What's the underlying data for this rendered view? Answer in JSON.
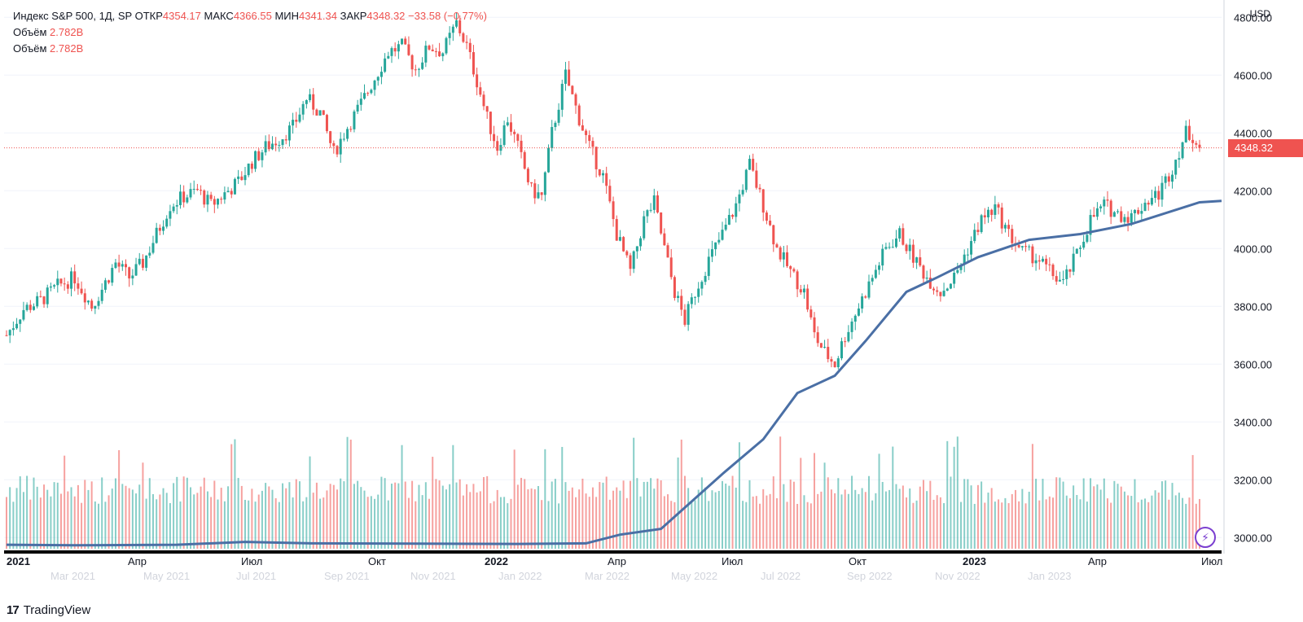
{
  "legend": {
    "symbol": "Индекс S&P 500, 1Д, SP",
    "open_label": "ОТКР",
    "open": "4354.17",
    "high_label": "МАКС",
    "high": "4366.55",
    "low_label": "МИН",
    "low": "4341.34",
    "close_label": "ЗАКР",
    "close": "4348.32",
    "change": "−33.58 (−0.77%)",
    "volume_label": "Объём",
    "volume": "2.782B",
    "volume2_label": "Объём",
    "volume2": "2.782B"
  },
  "currency": "USD",
  "last_price": "4348.32",
  "brand": {
    "logo": "17",
    "name": "TradingView"
  },
  "colors": {
    "up": "#26a69a",
    "down": "#ef5350",
    "overlay": "#4a6fa5",
    "text": "#131722",
    "purple": "#7b3fd0"
  },
  "icons": {
    "bolt": "lightning-icon"
  },
  "chart_data": {
    "type": "candlestick",
    "y_ticks": [
      "4800.00",
      "4600.00",
      "4400.00",
      "4200.00",
      "4000.00",
      "3800.00",
      "3600.00",
      "3400.00",
      "3200.00",
      "3000.00"
    ],
    "ylim": [
      2950,
      4860
    ],
    "x_ticks_primary": [
      "2021",
      "Апр",
      "Июл",
      "Окт",
      "2022",
      "Апр",
      "Июл",
      "Окт",
      "2023",
      "Апр",
      "Июл"
    ],
    "x_ticks_faded": [
      "Mar 2021",
      "May 2021",
      "Jul 2021",
      "Sep 2021",
      "Nov 2021",
      "Jan 2022",
      "Mar 2022",
      "May 2022",
      "Jul 2022",
      "Sep 2022",
      "Nov 2022",
      "Jan 2023"
    ],
    "price_path": [
      [
        0,
        3700
      ],
      [
        5,
        3790
      ],
      [
        10,
        3820
      ],
      [
        15,
        3870
      ],
      [
        20,
        3900
      ],
      [
        25,
        3800
      ],
      [
        28,
        3860
      ],
      [
        32,
        3950
      ],
      [
        36,
        3900
      ],
      [
        40,
        3950
      ],
      [
        44,
        4050
      ],
      [
        48,
        4150
      ],
      [
        52,
        4180
      ],
      [
        56,
        4200
      ],
      [
        60,
        4150
      ],
      [
        64,
        4190
      ],
      [
        68,
        4230
      ],
      [
        72,
        4300
      ],
      [
        76,
        4350
      ],
      [
        80,
        4380
      ],
      [
        84,
        4420
      ],
      [
        88,
        4520
      ],
      [
        92,
        4470
      ],
      [
        96,
        4330
      ],
      [
        100,
        4420
      ],
      [
        104,
        4500
      ],
      [
        108,
        4590
      ],
      [
        112,
        4680
      ],
      [
        116,
        4700
      ],
      [
        120,
        4620
      ],
      [
        124,
        4700
      ],
      [
        128,
        4680
      ],
      [
        132,
        4780
      ],
      [
        135,
        4700
      ],
      [
        138,
        4580
      ],
      [
        141,
        4450
      ],
      [
        144,
        4350
      ],
      [
        147,
        4450
      ],
      [
        150,
        4350
      ],
      [
        154,
        4200
      ],
      [
        157,
        4180
      ],
      [
        160,
        4400
      ],
      [
        164,
        4600
      ],
      [
        168,
        4450
      ],
      [
        171,
        4350
      ],
      [
        175,
        4250
      ],
      [
        179,
        4050
      ],
      [
        183,
        3920
      ],
      [
        187,
        4100
      ],
      [
        190,
        4160
      ],
      [
        193,
        4000
      ],
      [
        196,
        3850
      ],
      [
        199,
        3750
      ],
      [
        202,
        3850
      ],
      [
        206,
        3960
      ],
      [
        210,
        4050
      ],
      [
        214,
        4150
      ],
      [
        218,
        4290
      ],
      [
        222,
        4150
      ],
      [
        226,
        4000
      ],
      [
        230,
        3920
      ],
      [
        234,
        3850
      ],
      [
        237,
        3700
      ],
      [
        240,
        3640
      ],
      [
        243,
        3600
      ],
      [
        246,
        3700
      ],
      [
        250,
        3800
      ],
      [
        254,
        3900
      ],
      [
        258,
        4000
      ],
      [
        262,
        4050
      ],
      [
        266,
        3970
      ],
      [
        270,
        3900
      ],
      [
        274,
        3850
      ],
      [
        278,
        3900
      ],
      [
        282,
        4000
      ],
      [
        286,
        4100
      ],
      [
        290,
        4140
      ],
      [
        294,
        4050
      ],
      [
        298,
        3990
      ],
      [
        302,
        3970
      ],
      [
        306,
        3920
      ],
      [
        310,
        3880
      ],
      [
        314,
        3980
      ],
      [
        318,
        4100
      ],
      [
        322,
        4150
      ],
      [
        326,
        4120
      ],
      [
        330,
        4110
      ],
      [
        334,
        4160
      ],
      [
        338,
        4190
      ],
      [
        342,
        4280
      ],
      [
        346,
        4400
      ],
      [
        348,
        4390
      ],
      [
        350,
        4348.32
      ]
    ],
    "overlay_line": [
      [
        0,
        2975
      ],
      [
        20,
        2973
      ],
      [
        50,
        2975
      ],
      [
        70,
        2985
      ],
      [
        90,
        2980
      ],
      [
        120,
        2979
      ],
      [
        150,
        2978
      ],
      [
        170,
        2980
      ],
      [
        180,
        3010
      ],
      [
        192,
        3030
      ],
      [
        210,
        3220
      ],
      [
        222,
        3340
      ],
      [
        232,
        3500
      ],
      [
        243,
        3560
      ],
      [
        252,
        3680
      ],
      [
        264,
        3850
      ],
      [
        273,
        3900
      ],
      [
        285,
        3970
      ],
      [
        300,
        4030
      ],
      [
        315,
        4050
      ],
      [
        330,
        4085
      ],
      [
        350,
        4160
      ]
    ],
    "x_count": 350
  }
}
